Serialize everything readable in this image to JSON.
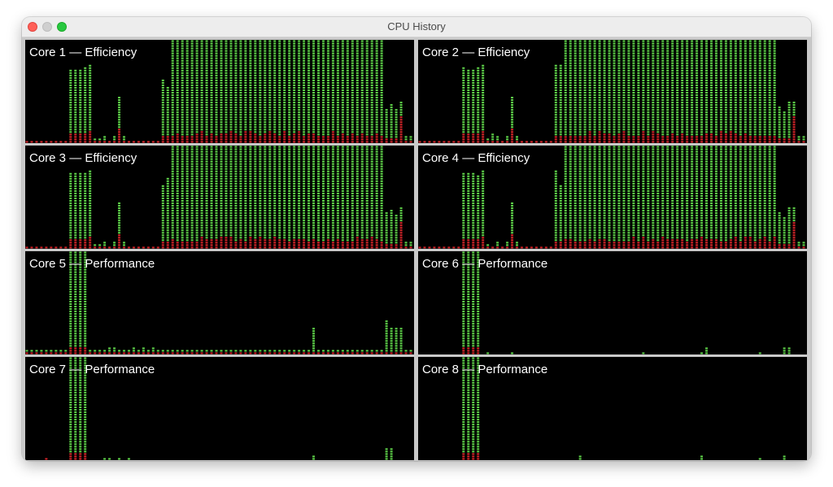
{
  "window": {
    "title": "CPU History"
  },
  "colors": {
    "user": "#5fd44a",
    "system": "#d8252a",
    "background": "#000000"
  },
  "panels": [
    {
      "label": "Core 1 — Efficiency",
      "profile": "eff"
    },
    {
      "label": "Core 2 — Efficiency",
      "profile": "eff"
    },
    {
      "label": "Core 3 — Efficiency",
      "profile": "eff"
    },
    {
      "label": "Core 4 — Efficiency",
      "profile": "eff"
    },
    {
      "label": "Core 5 — Performance",
      "profile": "perf-a"
    },
    {
      "label": "Core 6 — Performance",
      "profile": "perf-b"
    },
    {
      "label": "Core 7 — Performance",
      "profile": "perf-c"
    },
    {
      "label": "Core 8 — Performance",
      "profile": "perf-d"
    }
  ]
}
